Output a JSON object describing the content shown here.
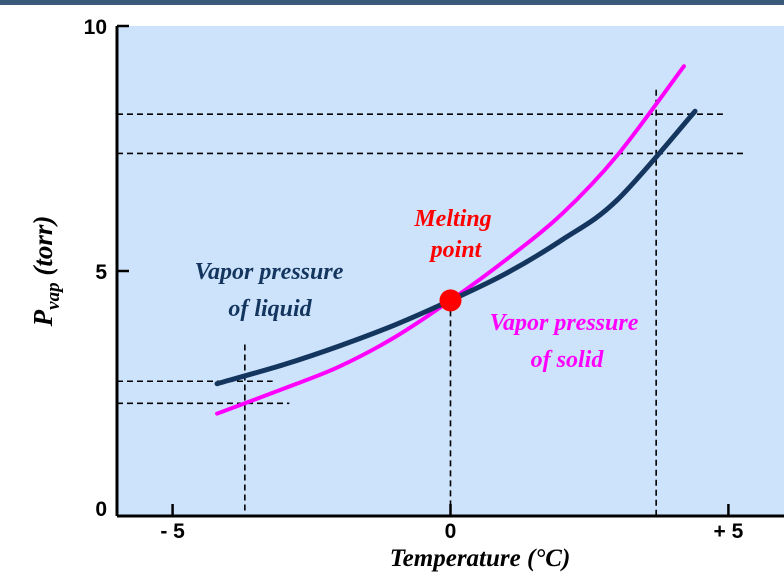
{
  "chart_data": {
    "type": "line",
    "title": "",
    "xlabel": "Temperature (°C)",
    "ylabel_main": "P",
    "ylabel_sub": "vap",
    "ylabel_rest": " (torr)",
    "xlim": [
      -6,
      6
    ],
    "ylim": [
      0,
      10
    ],
    "x_ticks": [
      -5,
      0,
      5
    ],
    "x_tick_labels": [
      "- 5",
      "0",
      "+ 5"
    ],
    "y_ticks": [
      0,
      5,
      10
    ],
    "y_tick_labels": [
      "0",
      "5",
      "10"
    ],
    "grid": false,
    "colors": {
      "plot_background": "#cce3fb",
      "liquid": "#14365e",
      "solid": "#ff00ff",
      "melting_point": "#ff0000",
      "header_bar": "#3b5a7a"
    },
    "series": [
      {
        "name_lines": [
          "Vapor pressure",
          "of liquid"
        ],
        "color": "#14365e",
        "x": [
          -4.2,
          -3,
          -2,
          -1,
          0,
          1,
          2,
          3,
          4.4
        ],
        "y": [
          2.7,
          3.09,
          3.47,
          3.9,
          4.4,
          4.95,
          5.63,
          6.45,
          8.26
        ]
      },
      {
        "name_lines": [
          "Vapor pressure",
          "of solid"
        ],
        "color": "#ff00ff",
        "x": [
          -4.2,
          -3,
          -2,
          -1,
          0,
          1,
          2,
          3,
          4.2
        ],
        "y": [
          2.09,
          2.6,
          3.05,
          3.65,
          4.4,
          5.23,
          6.16,
          7.36,
          9.18
        ]
      }
    ],
    "annotations": {
      "melting_point_lines": [
        "Melting",
        "point"
      ],
      "melting_point": {
        "x": 0,
        "y": 4.4
      }
    },
    "reference_lines": {
      "vertical_x": [
        -3.7,
        0,
        3.7
      ],
      "horizontal_y": [
        2.3,
        2.75,
        7.4,
        8.2
      ]
    }
  }
}
